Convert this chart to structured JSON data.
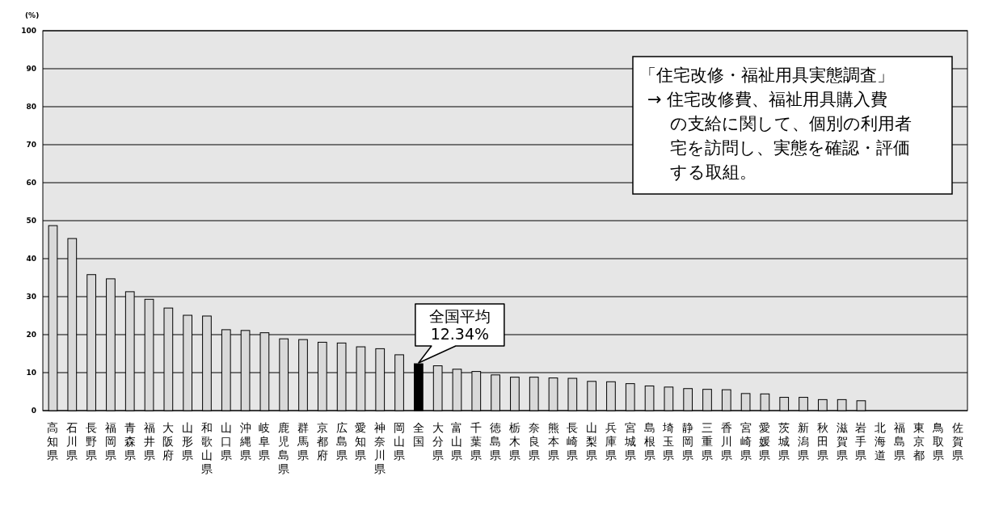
{
  "chart_data": {
    "type": "bar",
    "ylabel": "(%)",
    "categories": [
      "高知県",
      "石川県",
      "長野県",
      "福岡県",
      "青森県",
      "福井県",
      "大阪府",
      "山形県",
      "和歌山県",
      "山口県",
      "沖縄県",
      "岐阜県",
      "鹿児島県",
      "群馬県",
      "京都府",
      "広島県",
      "愛知県",
      "神奈川県",
      "岡山県",
      "全国",
      "大分県",
      "富山県",
      "千葉県",
      "徳島県",
      "栃木県",
      "奈良県",
      "熊本県",
      "長崎県",
      "山梨県",
      "兵庫県",
      "宮城県",
      "島根県",
      "埼玉県",
      "静岡県",
      "三重県",
      "香川県",
      "宮崎県",
      "愛媛県",
      "茨城県",
      "新潟県",
      "秋田県",
      "滋賀県",
      "岩手県",
      "北海道",
      "福島県",
      "東京都",
      "鳥取県",
      "佐賀県"
    ],
    "values": [
      48.7,
      45.3,
      35.8,
      34.7,
      31.3,
      29.3,
      27.0,
      25.1,
      24.9,
      21.3,
      21.1,
      20.5,
      18.9,
      18.7,
      18.0,
      17.8,
      16.8,
      16.3,
      14.7,
      12.34,
      11.8,
      10.9,
      10.3,
      9.4,
      8.8,
      8.8,
      8.6,
      8.5,
      7.7,
      7.6,
      7.1,
      6.5,
      6.2,
      5.8,
      5.6,
      5.5,
      4.5,
      4.4,
      3.5,
      3.5,
      2.9,
      2.9,
      2.6,
      0,
      0,
      0,
      0,
      0
    ],
    "colors": [
      "#d9d9d9",
      "#d9d9d9",
      "#d9d9d9",
      "#d9d9d9",
      "#d9d9d9",
      "#d9d9d9",
      "#d9d9d9",
      "#d9d9d9",
      "#d9d9d9",
      "#d9d9d9",
      "#d9d9d9",
      "#d9d9d9",
      "#d9d9d9",
      "#d9d9d9",
      "#d9d9d9",
      "#d9d9d9",
      "#d9d9d9",
      "#d9d9d9",
      "#d9d9d9",
      "#000000",
      "#d9d9d9",
      "#d9d9d9",
      "#d9d9d9",
      "#d9d9d9",
      "#d9d9d9",
      "#d9d9d9",
      "#d9d9d9",
      "#d9d9d9",
      "#d9d9d9",
      "#d9d9d9",
      "#d9d9d9",
      "#d9d9d9",
      "#d9d9d9",
      "#d9d9d9",
      "#d9d9d9",
      "#d9d9d9",
      "#d9d9d9",
      "#d9d9d9",
      "#d9d9d9",
      "#d9d9d9",
      "#d9d9d9",
      "#d9d9d9",
      "#d9d9d9",
      "#d9d9d9",
      "#d9d9d9",
      "#d9d9d9",
      "#d9d9d9",
      "#d9d9d9"
    ],
    "ylim": [
      0,
      100
    ],
    "yticks": [
      0,
      10,
      20,
      30,
      40,
      50,
      60,
      70,
      80,
      90,
      100
    ],
    "grid": "y",
    "annotations": [
      {
        "text": "全国平均\n12.34%",
        "x": "全国",
        "y": 12.34
      },
      "「住宅改修・福祉用具実態調査」",
      "→ 住宅改修費、福祉用具購入費の支給に関して、個別の利用者宅を訪問し、実態を確認・評価する取組。"
    ]
  }
}
